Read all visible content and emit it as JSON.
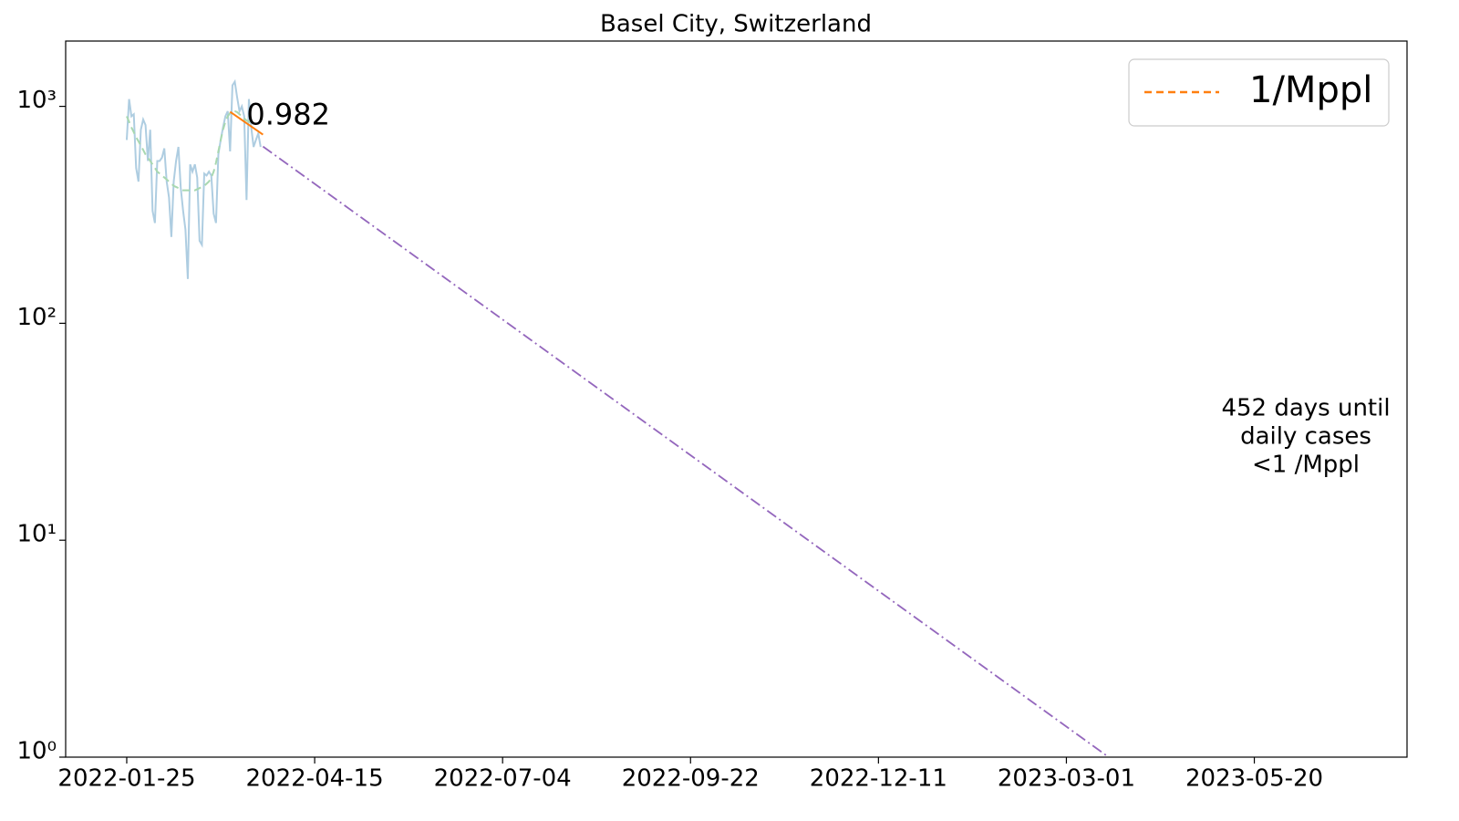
{
  "chart_data": {
    "type": "line",
    "title": "Basel City, Switzerland",
    "log_y": true,
    "xlim": [
      "2021-12-30",
      "2023-07-24"
    ],
    "xticks": [
      "2022-01-25",
      "2022-04-15",
      "2022-07-04",
      "2022-09-22",
      "2022-12-11",
      "2023-03-01",
      "2023-05-20"
    ],
    "ylim": [
      1,
      2000
    ],
    "yticks": [
      {
        "value": 1,
        "label": "10⁰"
      },
      {
        "value": 10,
        "label": "10¹"
      },
      {
        "value": 100,
        "label": "10²"
      },
      {
        "value": 1000,
        "label": "10³"
      }
    ],
    "x": [
      "2022-01-25",
      "2022-01-26",
      "2022-01-27",
      "2022-01-28",
      "2022-01-29",
      "2022-01-30",
      "2022-01-31",
      "2022-02-01",
      "2022-02-02",
      "2022-02-03",
      "2022-02-04",
      "2022-02-05",
      "2022-02-06",
      "2022-02-07",
      "2022-02-08",
      "2022-02-09",
      "2022-02-10",
      "2022-02-11",
      "2022-02-12",
      "2022-02-13",
      "2022-02-14",
      "2022-02-15",
      "2022-02-16",
      "2022-02-17",
      "2022-02-18",
      "2022-02-19",
      "2022-02-20",
      "2022-02-21",
      "2022-02-22",
      "2022-02-23",
      "2022-02-24",
      "2022-02-25",
      "2022-02-26",
      "2022-02-27",
      "2022-02-28",
      "2022-03-01",
      "2022-03-02",
      "2022-03-03",
      "2022-03-04",
      "2022-03-05",
      "2022-03-06",
      "2022-03-07",
      "2022-03-08",
      "2022-03-09",
      "2022-03-10",
      "2022-03-11",
      "2022-03-12",
      "2022-03-13",
      "2022-03-14",
      "2022-03-15",
      "2022-03-16",
      "2022-03-17",
      "2022-03-18",
      "2022-03-19",
      "2022-03-20",
      "2022-03-21",
      "2022-03-22",
      "2022-03-23"
    ],
    "series": [
      {
        "color": "#aecde1",
        "style": "solid",
        "values": [
          700,
          1080,
          900,
          920,
          520,
          450,
          780,
          870,
          820,
          560,
          780,
          330,
          290,
          560,
          560,
          580,
          640,
          450,
          380,
          250,
          450,
          560,
          650,
          420,
          330,
          270,
          160,
          540,
          500,
          540,
          470,
          240,
          230,
          490,
          480,
          500,
          480,
          320,
          290,
          600,
          700,
          800,
          900,
          950,
          620,
          1250,
          1300,
          1100,
          950,
          1000,
          900,
          370,
          1080,
          800,
          650,
          700,
          750,
          650
        ]
      },
      {
        "color": "#a8d8b0",
        "style": "dashed",
        "values": [
          900,
          850,
          800,
          760,
          720,
          690,
          660,
          630,
          600,
          580,
          560,
          540,
          520,
          500,
          490,
          480,
          470,
          460,
          450,
          440,
          430,
          425,
          420,
          415,
          410,
          410,
          410,
          410,
          410,
          410,
          415,
          420,
          425,
          430,
          440,
          450,
          470,
          500,
          550,
          620,
          700,
          780,
          850,
          900,
          930,
          950,
          950,
          940,
          920,
          900,
          880,
          860,
          850,
          840,
          830,
          null,
          null,
          null
        ]
      }
    ],
    "fit": {
      "x": [
        "2022-03-10",
        "2022-03-24"
      ],
      "values": [
        944,
        741
      ],
      "color": "#ff7f0e",
      "label": "0.982"
    },
    "projection": {
      "x": [
        "2022-03-24",
        "2023-03-19"
      ],
      "values": [
        653,
        1
      ],
      "color": "#9467bd",
      "text": [
        "452 days until",
        "daily cases",
        "<1 /Mppl"
      ]
    },
    "legend": {
      "position": "upper right",
      "entries": [
        {
          "name": "1/Mppl",
          "color": "#ff7f0e",
          "style": "dashed"
        }
      ]
    }
  }
}
